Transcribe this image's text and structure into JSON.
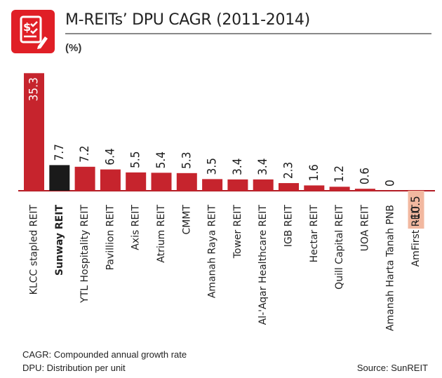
{
  "header": {
    "logo_icon": "document-dollar-checklist-icon",
    "title": "M-REITs’ DPU CAGR (2011-2014)",
    "unit": "(%)"
  },
  "footer": {
    "note_1": "CAGR: Compounded annual growth rate",
    "note_2": "DPU: Distribution per unit",
    "source": "Source: SunREIT"
  },
  "colors": {
    "bar": "#c6242d",
    "highlight": "#1a1a1a",
    "negative": "#f2b8a0",
    "axis": "#b21c24"
  },
  "chart_data": {
    "type": "bar",
    "title": "M-REITs’ DPU CAGR (2011-2014)",
    "ylabel": "(%)",
    "categories": [
      "KLCC stapled REIT",
      "Sunway REIT",
      "YTL Hospitality REIT",
      "Pavillion REIT",
      "Axis REIT",
      "Atrium REIT",
      "CMMT",
      "Amanah Raya REIT",
      "Tower REIT",
      "Al-'Aqar Healthcare REIT",
      "IGB REIT",
      "Hectar REIT",
      "Quill Capital REIT",
      "UOA REIT",
      "Amanah Harta Tanah PNB",
      "AmFirst REIT"
    ],
    "values": [
      35.3,
      7.7,
      7.2,
      6.4,
      5.5,
      5.4,
      5.3,
      3.5,
      3.4,
      3.4,
      2.3,
      1.6,
      1.2,
      0.6,
      0,
      -10.5
    ],
    "value_labels": [
      "35.3",
      "7.7",
      "7.2",
      "6.4",
      "5.5",
      "5.4",
      "5.3",
      "3.5",
      "3.4",
      "3.4",
      "2.3",
      "1.6",
      "1.2",
      "0.6",
      "0",
      "-10.5"
    ],
    "highlight": "Sunway REIT",
    "grid": false,
    "legend": "none"
  }
}
